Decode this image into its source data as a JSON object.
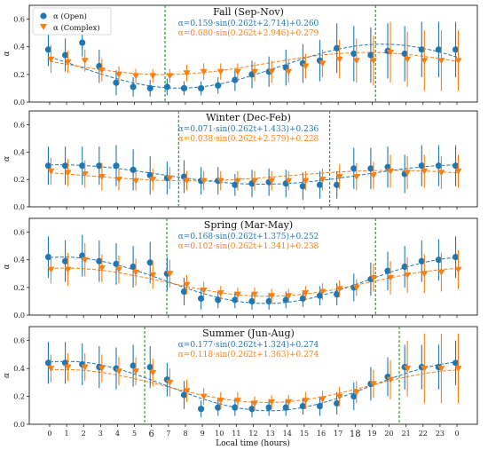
{
  "colors": {
    "open": "#1f77b4",
    "complex": "#ff7f0e",
    "marker_line": "#2ca02c",
    "frame": "#000000"
  },
  "legend": {
    "placement": "top-left",
    "open_label": "α (Open)",
    "complex_label": "α (Complex)"
  },
  "xaxis": {
    "label": "Local time (hours)",
    "small_ticks": [
      {
        "x": 0,
        "label": "0"
      },
      {
        "x": 1,
        "label": "1"
      },
      {
        "x": 2,
        "label": "2"
      },
      {
        "x": 3,
        "label": "3"
      },
      {
        "x": 4,
        "label": "4"
      },
      {
        "x": 5,
        "label": "5"
      },
      {
        "x": 7,
        "label": "7"
      },
      {
        "x": 8,
        "label": "8"
      },
      {
        "x": 9,
        "label": "9"
      },
      {
        "x": 10,
        "label": "10"
      },
      {
        "x": 11,
        "label": "11"
      },
      {
        "x": 12,
        "label": "12"
      },
      {
        "x": 13,
        "label": "13"
      },
      {
        "x": 14,
        "label": "14"
      },
      {
        "x": 15,
        "label": "15"
      },
      {
        "x": 16,
        "label": "16"
      },
      {
        "x": 17,
        "label": "17"
      },
      {
        "x": 19,
        "label": "19"
      },
      {
        "x": 20,
        "label": "20"
      },
      {
        "x": 21,
        "label": "21"
      },
      {
        "x": 22,
        "label": "22"
      },
      {
        "x": 23,
        "label": "23"
      },
      {
        "x": 24,
        "label": "0"
      }
    ],
    "big_ticks": [
      {
        "x": 6,
        "label": "6"
      },
      {
        "x": 18,
        "label": "18"
      }
    ],
    "xlim": [
      -1.2,
      25.2
    ]
  },
  "chart_data": [
    {
      "type": "scatter",
      "title": "Fall (Sep-Nov)",
      "eq_open": "α=0.159·sin(0.262t+2.714)+0.260",
      "eq_complex": "α=0.080·sin(0.262t+2.946)+0.279",
      "ylim": [
        0,
        0.7
      ],
      "yticks": [
        0.0,
        0.2,
        0.4,
        0.6
      ],
      "ylabel": "α",
      "show_legend": true,
      "sunrise": 6.8,
      "sunset": 19.2,
      "x": [
        0,
        1,
        2,
        3,
        4,
        5,
        6,
        7,
        8,
        9,
        10,
        11,
        12,
        13,
        14,
        15,
        16,
        17,
        18,
        19,
        20,
        21,
        22,
        23,
        24
      ],
      "fit_open": {
        "amp": 0.159,
        "phase": 2.714,
        "offset": 0.26
      },
      "fit_complex": {
        "amp": 0.08,
        "phase": 2.946,
        "offset": 0.279
      },
      "series": [
        {
          "name": "α (Open)",
          "values": [
            0.38,
            0.34,
            0.43,
            0.26,
            0.14,
            0.11,
            0.1,
            0.11,
            0.1,
            0.1,
            0.12,
            0.16,
            0.2,
            0.22,
            0.25,
            0.28,
            0.3,
            0.39,
            0.35,
            0.34,
            0.37,
            0.35,
            0.38,
            0.38,
            0.38
          ],
          "err": [
            0.12,
            0.12,
            0.1,
            0.12,
            0.09,
            0.07,
            0.06,
            0.06,
            0.05,
            0.05,
            0.06,
            0.08,
            0.1,
            0.11,
            0.13,
            0.14,
            0.15,
            0.18,
            0.2,
            0.2,
            0.2,
            0.2,
            0.2,
            0.2,
            0.2
          ]
        },
        {
          "name": "α (Complex)",
          "values": [
            0.31,
            0.29,
            0.3,
            0.23,
            0.2,
            0.19,
            0.19,
            0.19,
            0.21,
            0.22,
            0.22,
            0.22,
            0.22,
            0.22,
            0.22,
            0.26,
            0.28,
            0.31,
            0.3,
            0.3,
            0.36,
            0.31,
            0.3,
            0.3,
            0.3
          ],
          "err": [
            0.1,
            0.08,
            0.08,
            0.08,
            0.06,
            0.05,
            0.05,
            0.05,
            0.06,
            0.06,
            0.06,
            0.06,
            0.07,
            0.08,
            0.08,
            0.09,
            0.1,
            0.14,
            0.16,
            0.18,
            0.22,
            0.2,
            0.22,
            0.22,
            0.22
          ]
        }
      ]
    },
    {
      "type": "scatter",
      "title": "Winter (Dec-Feb)",
      "eq_open": "α=0.071·sin(0.262t+1.433)+0.236",
      "eq_complex": "α=0.038·sin(0.262t+2.579)+0.228",
      "ylim": [
        0,
        0.7
      ],
      "yticks": [
        0.0,
        0.2,
        0.4,
        0.6
      ],
      "ylabel": "α",
      "show_legend": false,
      "sunrise": 7.6,
      "sunset": 16.5,
      "x": [
        0,
        1,
        2,
        3,
        4,
        5,
        6,
        7,
        8,
        9,
        10,
        11,
        12,
        13,
        14,
        15,
        16,
        17,
        18,
        19,
        20,
        21,
        22,
        23,
        24
      ],
      "fit_open": {
        "amp": 0.071,
        "phase": 1.433,
        "offset": 0.236
      },
      "fit_complex": {
        "amp": 0.038,
        "phase": 2.579,
        "offset": 0.228
      },
      "series": [
        {
          "name": "α (Open)",
          "values": [
            0.3,
            0.3,
            0.3,
            0.3,
            0.3,
            0.27,
            0.23,
            0.21,
            0.22,
            0.19,
            0.19,
            0.16,
            0.17,
            0.18,
            0.17,
            0.15,
            0.16,
            0.16,
            0.28,
            0.28,
            0.29,
            0.24,
            0.3,
            0.3,
            0.3
          ],
          "err": [
            0.14,
            0.14,
            0.14,
            0.14,
            0.15,
            0.15,
            0.14,
            0.12,
            0.12,
            0.1,
            0.1,
            0.08,
            0.1,
            0.1,
            0.1,
            0.1,
            0.1,
            0.1,
            0.15,
            0.15,
            0.15,
            0.14,
            0.15,
            0.15,
            0.15
          ]
        },
        {
          "name": "α (Complex)",
          "values": [
            0.26,
            0.25,
            0.24,
            0.22,
            0.2,
            0.19,
            0.2,
            0.21,
            0.19,
            0.19,
            0.19,
            0.19,
            0.19,
            0.19,
            0.19,
            0.19,
            0.2,
            0.22,
            0.22,
            0.23,
            0.26,
            0.25,
            0.26,
            0.25,
            0.26
          ],
          "err": [
            0.1,
            0.1,
            0.1,
            0.1,
            0.08,
            0.07,
            0.08,
            0.08,
            0.07,
            0.07,
            0.07,
            0.07,
            0.07,
            0.07,
            0.07,
            0.07,
            0.08,
            0.09,
            0.1,
            0.1,
            0.12,
            0.12,
            0.12,
            0.12,
            0.12
          ]
        }
      ]
    },
    {
      "type": "scatter",
      "title": "Spring (Mar-May)",
      "eq_open": "α=0.168·sin(0.262t+1.375)+0.252",
      "eq_complex": "α=0.102·sin(0.262t+1.341)+0.238",
      "ylim": [
        0,
        0.7
      ],
      "yticks": [
        0.0,
        0.2,
        0.4,
        0.6
      ],
      "ylabel": "α",
      "show_legend": false,
      "sunrise": 6.9,
      "sunset": 19.2,
      "x": [
        0,
        1,
        2,
        3,
        4,
        5,
        6,
        7,
        8,
        9,
        10,
        11,
        12,
        13,
        14,
        15,
        16,
        17,
        18,
        19,
        20,
        21,
        22,
        23,
        24
      ],
      "fit_open": {
        "amp": 0.168,
        "phase": 1.375,
        "offset": 0.252
      },
      "fit_complex": {
        "amp": 0.102,
        "phase": 1.341,
        "offset": 0.238
      },
      "series": [
        {
          "name": "α (Open)",
          "values": [
            0.42,
            0.39,
            0.43,
            0.39,
            0.37,
            0.35,
            0.38,
            0.3,
            0.17,
            0.12,
            0.11,
            0.11,
            0.1,
            0.1,
            0.11,
            0.12,
            0.14,
            0.15,
            0.2,
            0.26,
            0.32,
            0.35,
            0.39,
            0.4,
            0.42
          ],
          "err": [
            0.15,
            0.15,
            0.15,
            0.15,
            0.15,
            0.15,
            0.15,
            0.12,
            0.1,
            0.08,
            0.06,
            0.06,
            0.06,
            0.06,
            0.06,
            0.06,
            0.07,
            0.08,
            0.1,
            0.12,
            0.14,
            0.15,
            0.15,
            0.15,
            0.15
          ]
        },
        {
          "name": "α (Complex)",
          "values": [
            0.33,
            0.33,
            0.4,
            0.34,
            0.33,
            0.31,
            0.29,
            0.3,
            0.22,
            0.18,
            0.16,
            0.15,
            0.15,
            0.14,
            0.14,
            0.16,
            0.17,
            0.19,
            0.2,
            0.27,
            0.27,
            0.29,
            0.3,
            0.31,
            0.33
          ],
          "err": [
            0.1,
            0.12,
            0.12,
            0.1,
            0.1,
            0.1,
            0.1,
            0.1,
            0.07,
            0.06,
            0.05,
            0.05,
            0.05,
            0.05,
            0.05,
            0.05,
            0.06,
            0.06,
            0.06,
            0.1,
            0.12,
            0.13,
            0.14,
            0.14,
            0.14
          ]
        }
      ]
    },
    {
      "type": "scatter",
      "title": "Summer (Jun-Aug)",
      "eq_open": "α=0.177·sin(0.262t+1.324)+0.274",
      "eq_complex": "α=0.118·sin(0.262t+1.363)+0.274",
      "ylim": [
        0,
        0.7
      ],
      "yticks": [
        0.0,
        0.2,
        0.4,
        0.6
      ],
      "ylabel": "α",
      "show_legend": false,
      "sunrise": 5.6,
      "sunset": 20.6,
      "x": [
        0,
        1,
        2,
        3,
        4,
        5,
        6,
        7,
        8,
        9,
        10,
        11,
        12,
        13,
        14,
        15,
        16,
        17,
        18,
        19,
        20,
        21,
        22,
        23,
        24
      ],
      "fit_open": {
        "amp": 0.177,
        "phase": 1.324,
        "offset": 0.274
      },
      "fit_complex": {
        "amp": 0.118,
        "phase": 1.363,
        "offset": 0.274
      },
      "series": [
        {
          "name": "α (Open)",
          "values": [
            0.44,
            0.44,
            0.43,
            0.41,
            0.4,
            0.42,
            0.41,
            0.32,
            0.21,
            0.11,
            0.12,
            0.12,
            0.11,
            0.12,
            0.12,
            0.13,
            0.13,
            0.15,
            0.2,
            0.29,
            0.34,
            0.41,
            0.41,
            0.41,
            0.44
          ],
          "err": [
            0.15,
            0.15,
            0.15,
            0.15,
            0.15,
            0.15,
            0.15,
            0.12,
            0.1,
            0.06,
            0.06,
            0.06,
            0.06,
            0.06,
            0.06,
            0.06,
            0.07,
            0.08,
            0.1,
            0.12,
            0.14,
            0.16,
            0.16,
            0.16,
            0.16
          ]
        },
        {
          "name": "α (Complex)",
          "values": [
            0.4,
            0.41,
            0.41,
            0.4,
            0.38,
            0.38,
            0.37,
            0.3,
            0.24,
            0.2,
            0.17,
            0.17,
            0.15,
            0.16,
            0.16,
            0.17,
            0.18,
            0.2,
            0.23,
            0.29,
            0.32,
            0.4,
            0.4,
            0.4,
            0.4
          ],
          "err": [
            0.1,
            0.1,
            0.1,
            0.1,
            0.1,
            0.1,
            0.1,
            0.1,
            0.08,
            0.06,
            0.06,
            0.06,
            0.05,
            0.05,
            0.05,
            0.06,
            0.06,
            0.07,
            0.08,
            0.1,
            0.14,
            0.2,
            0.25,
            0.25,
            0.25
          ]
        }
      ]
    }
  ]
}
